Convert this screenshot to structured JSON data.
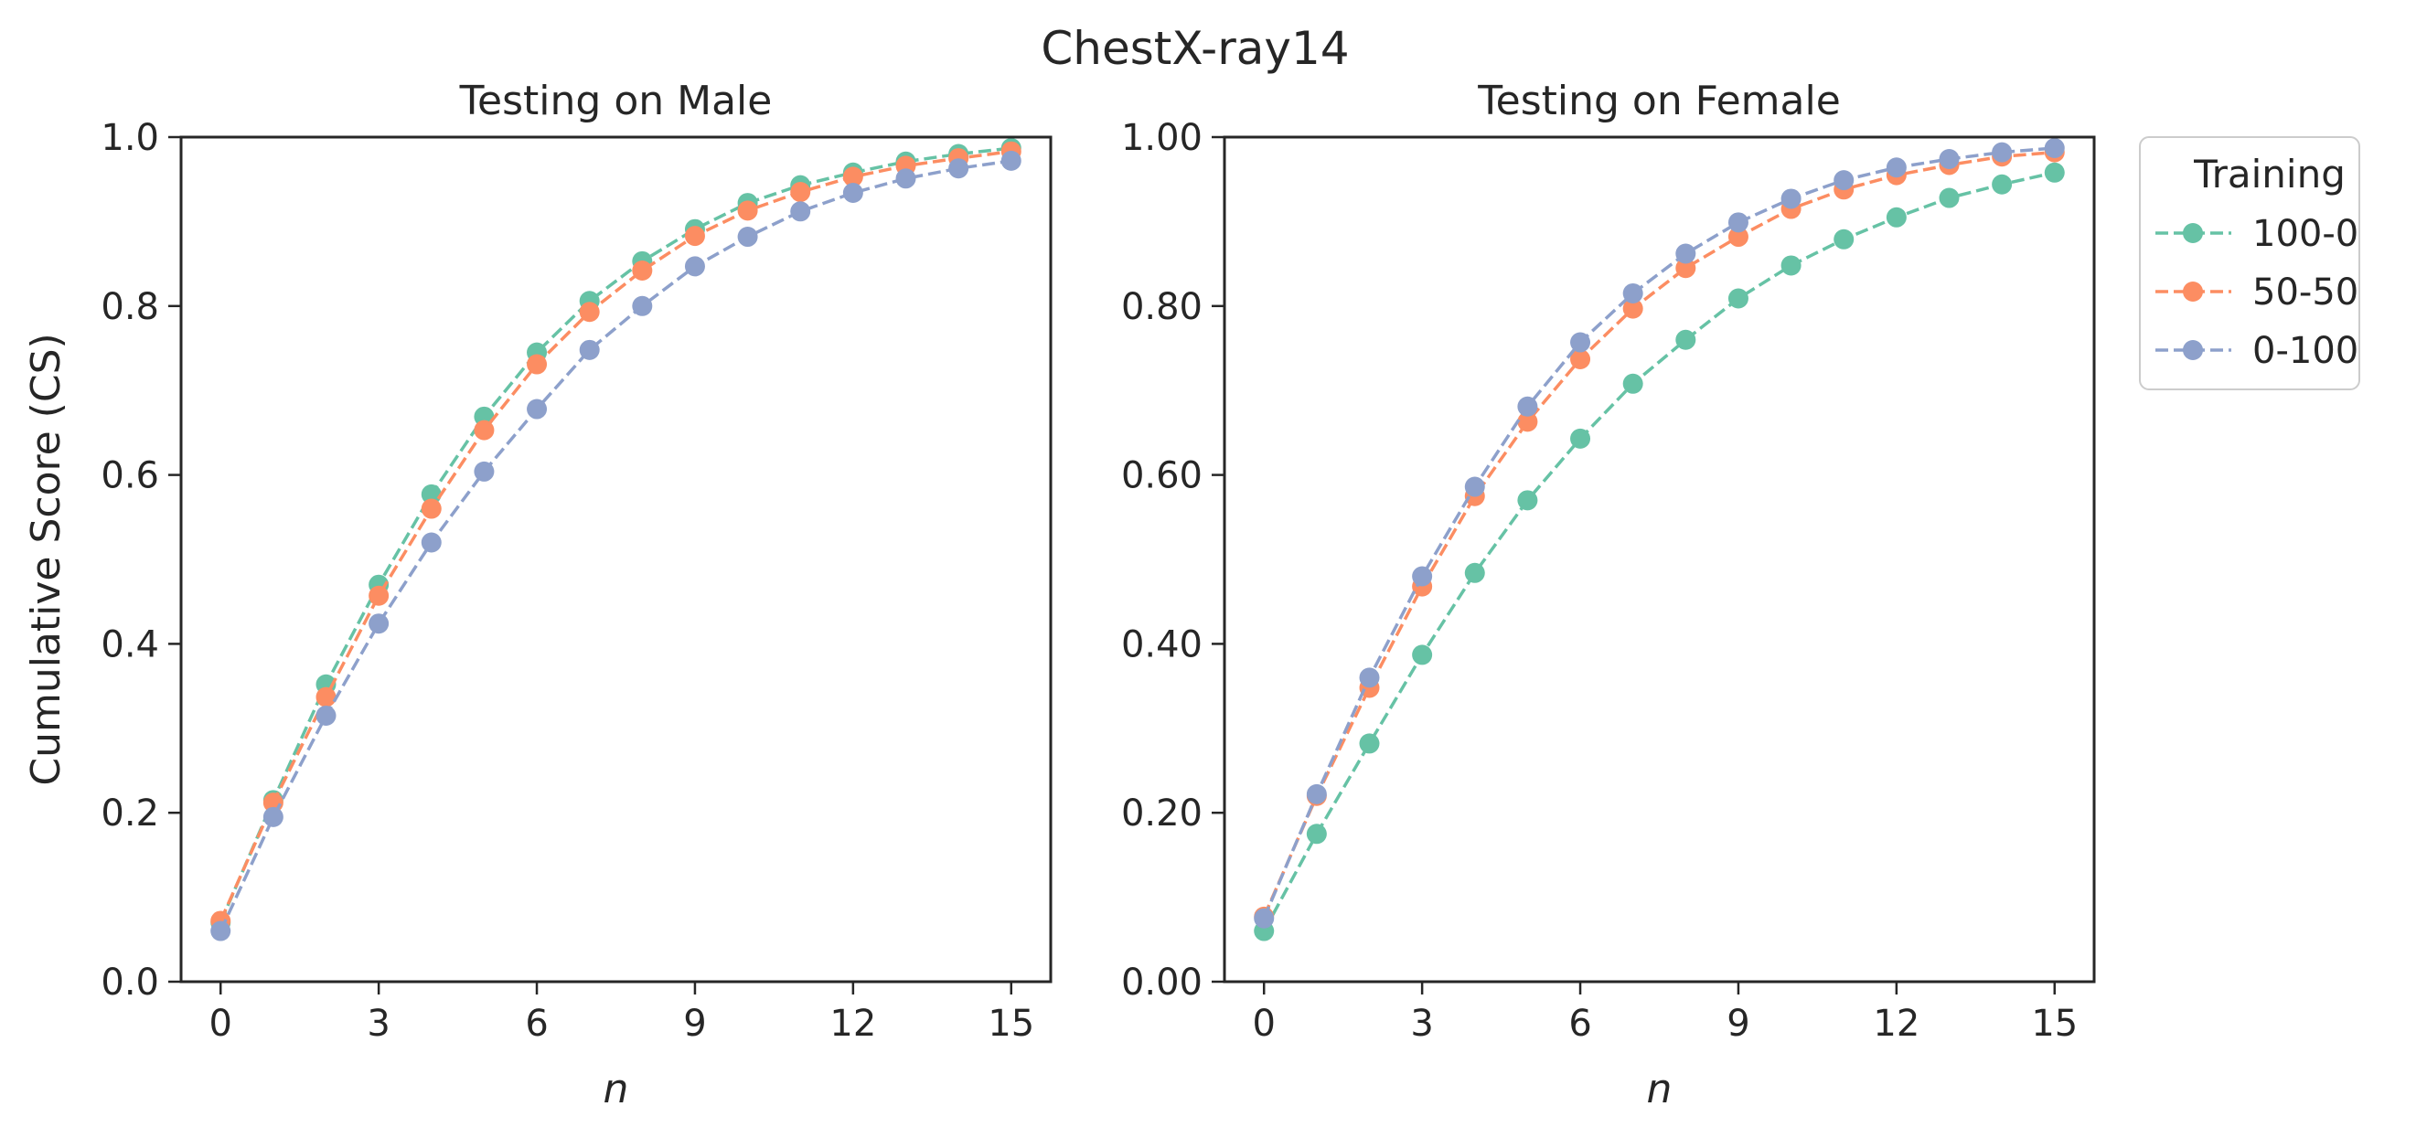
{
  "figure_title": "ChestX-ray14",
  "legend": {
    "title": "Training",
    "placement": "outside-right-top"
  },
  "colors": {
    "100-0": "#66c2a5",
    "50-50": "#fc8d62",
    "0-100": "#8da0cb",
    "axis": "#262626",
    "text": "#262626"
  },
  "chart_data": [
    {
      "type": "line",
      "title": "Testing on Male",
      "xlabel": "n",
      "ylabel": "Cumulative Score (CS)",
      "xlim": [
        -0.75,
        15.75
      ],
      "ylim": [
        0,
        1
      ],
      "xticks": [
        0,
        3,
        6,
        9,
        12,
        15
      ],
      "yticks": [
        0,
        0.2,
        0.4,
        0.6,
        0.8,
        1.0
      ],
      "ytick_labels": [
        "0.0",
        "0.2",
        "0.4",
        "0.6",
        "0.8",
        "1.0"
      ],
      "x": [
        0,
        1,
        2,
        3,
        4,
        5,
        6,
        7,
        8,
        9,
        10,
        11,
        12,
        13,
        14,
        15
      ],
      "series": [
        {
          "name": "100-0",
          "values": [
            0.07,
            0.215,
            0.352,
            0.47,
            0.577,
            0.669,
            0.745,
            0.806,
            0.853,
            0.891,
            0.922,
            0.943,
            0.958,
            0.971,
            0.98,
            0.987
          ]
        },
        {
          "name": "50-50",
          "values": [
            0.072,
            0.212,
            0.337,
            0.457,
            0.56,
            0.653,
            0.731,
            0.793,
            0.842,
            0.883,
            0.913,
            0.935,
            0.953,
            0.966,
            0.975,
            0.983
          ]
        },
        {
          "name": "0-100",
          "values": [
            0.06,
            0.195,
            0.315,
            0.424,
            0.52,
            0.604,
            0.678,
            0.748,
            0.8,
            0.847,
            0.882,
            0.912,
            0.934,
            0.951,
            0.963,
            0.972
          ]
        }
      ]
    },
    {
      "type": "line",
      "title": "Testing on Female",
      "xlabel": "n",
      "ylabel": "",
      "xlim": [
        -0.75,
        15.75
      ],
      "ylim": [
        0,
        1
      ],
      "xticks": [
        0,
        3,
        6,
        9,
        12,
        15
      ],
      "yticks": [
        0,
        0.2,
        0.4,
        0.6,
        0.8,
        1.0
      ],
      "ytick_labels": [
        "0.00",
        "0.20",
        "0.40",
        "0.60",
        "0.80",
        "1.00"
      ],
      "x": [
        0,
        1,
        2,
        3,
        4,
        5,
        6,
        7,
        8,
        9,
        10,
        11,
        12,
        13,
        14,
        15
      ],
      "series": [
        {
          "name": "100-0",
          "values": [
            0.06,
            0.175,
            0.282,
            0.387,
            0.484,
            0.57,
            0.643,
            0.708,
            0.76,
            0.809,
            0.848,
            0.879,
            0.905,
            0.928,
            0.944,
            0.958
          ]
        },
        {
          "name": "50-50",
          "values": [
            0.077,
            0.22,
            0.348,
            0.468,
            0.575,
            0.663,
            0.737,
            0.797,
            0.845,
            0.882,
            0.915,
            0.938,
            0.955,
            0.967,
            0.977,
            0.982
          ]
        },
        {
          "name": "0-100",
          "values": [
            0.075,
            0.222,
            0.36,
            0.48,
            0.586,
            0.681,
            0.757,
            0.815,
            0.862,
            0.899,
            0.927,
            0.949,
            0.964,
            0.974,
            0.982,
            0.987
          ]
        }
      ]
    }
  ]
}
